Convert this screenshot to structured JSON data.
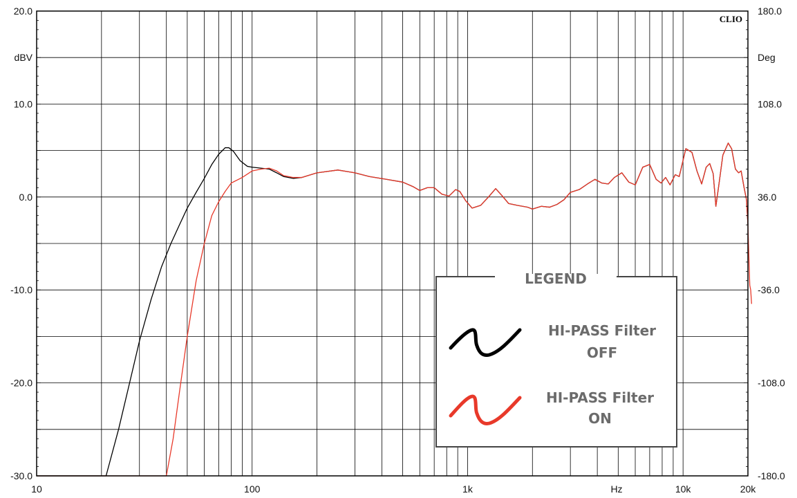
{
  "chart_data": {
    "type": "line",
    "brand": "CLIO",
    "x_scale": "log",
    "xlim": [
      10,
      20000
    ],
    "ylim": [
      -30,
      20
    ],
    "y2lim": [
      -180,
      180
    ],
    "grid": true,
    "left_unit": "dBV",
    "right_unit": "Deg",
    "x_unit": "Hz",
    "x_ticks": [
      {
        "value": 10,
        "label": "10"
      },
      {
        "value": 100,
        "label": "100"
      },
      {
        "value": 1000,
        "label": "1k"
      },
      {
        "value": 10000,
        "label": "10k"
      },
      {
        "value": 20000,
        "label": "20k"
      }
    ],
    "y_ticks": [
      {
        "value": 20,
        "label": "20.0"
      },
      {
        "value": 10,
        "label": "10.0"
      },
      {
        "value": 0,
        "label": "0.0"
      },
      {
        "value": -10,
        "label": "-10.0"
      },
      {
        "value": -20,
        "label": "-20.0"
      },
      {
        "value": -30,
        "label": "-30.0"
      }
    ],
    "y2_ticks": [
      {
        "value": 180,
        "label": "180.0"
      },
      {
        "value": 108,
        "label": "108.0"
      },
      {
        "value": 36,
        "label": "36.0"
      },
      {
        "value": -36,
        "label": "-36.0"
      },
      {
        "value": -108,
        "label": "-108.0"
      },
      {
        "value": -180,
        "label": "-180.0"
      }
    ],
    "legend": {
      "title": "LEGEND",
      "placement": "bottom-right",
      "entries": [
        {
          "line1": "HI-PASS Filter",
          "line2": "OFF",
          "color": "#000000"
        },
        {
          "line1": "HI-PASS Filter",
          "line2": "ON",
          "color": "#e8392a"
        }
      ]
    },
    "series": [
      {
        "color": "#000000",
        "points": [
          [
            10,
            -30
          ],
          [
            21,
            -30
          ],
          [
            24,
            -25
          ],
          [
            27,
            -20
          ],
          [
            30,
            -15.5
          ],
          [
            34,
            -11
          ],
          [
            38,
            -7.5
          ],
          [
            42,
            -5
          ],
          [
            46,
            -3
          ],
          [
            50,
            -1.2
          ],
          [
            55,
            0.5
          ],
          [
            60,
            2
          ],
          [
            65,
            3.5
          ],
          [
            70,
            4.6
          ],
          [
            75,
            5.3
          ],
          [
            78,
            5.3
          ],
          [
            82,
            4.9
          ],
          [
            88,
            3.9
          ],
          [
            95,
            3.3
          ],
          [
            100,
            3.2
          ],
          [
            110,
            3.1
          ],
          [
            120,
            3
          ],
          [
            130,
            2.6
          ],
          [
            140,
            2.2
          ],
          [
            155,
            2.0
          ],
          [
            170,
            2.1
          ],
          [
            200,
            2.6
          ],
          [
            250,
            2.9
          ],
          [
            300,
            2.6
          ],
          [
            350,
            2.2
          ],
          [
            420,
            1.9
          ],
          [
            500,
            1.6
          ],
          [
            560,
            1.1
          ],
          [
            600,
            0.7
          ],
          [
            650,
            1.0
          ],
          [
            700,
            1.0
          ],
          [
            760,
            0.3
          ],
          [
            820,
            0.1
          ],
          [
            880,
            0.8
          ],
          [
            920,
            0.6
          ],
          [
            980,
            -0.4
          ],
          [
            1050,
            -1.2
          ],
          [
            1150,
            -0.9
          ],
          [
            1250,
            0.0
          ],
          [
            1350,
            0.9
          ],
          [
            1450,
            0.1
          ],
          [
            1550,
            -0.7
          ],
          [
            1700,
            -0.9
          ],
          [
            1900,
            -1.1
          ],
          [
            2000,
            -1.3
          ],
          [
            2200,
            -1.0
          ],
          [
            2400,
            -1.1
          ],
          [
            2600,
            -0.8
          ],
          [
            2800,
            -0.3
          ],
          [
            3000,
            0.5
          ],
          [
            3300,
            0.8
          ],
          [
            3600,
            1.4
          ],
          [
            3900,
            1.9
          ],
          [
            4200,
            1.5
          ],
          [
            4500,
            1.4
          ],
          [
            4800,
            2.1
          ],
          [
            5200,
            2.6
          ],
          [
            5600,
            1.6
          ],
          [
            6000,
            1.3
          ],
          [
            6500,
            3.2
          ],
          [
            7000,
            3.5
          ],
          [
            7500,
            1.9
          ],
          [
            7900,
            1.5
          ],
          [
            8300,
            2.1
          ],
          [
            8700,
            1.3
          ],
          [
            9200,
            2.4
          ],
          [
            9600,
            2.2
          ],
          [
            10300,
            5.2
          ],
          [
            11000,
            4.8
          ],
          [
            11600,
            2.8
          ],
          [
            12200,
            1.4
          ],
          [
            12800,
            3.2
          ],
          [
            13300,
            3.6
          ],
          [
            13800,
            2.5
          ],
          [
            14200,
            -1.0
          ],
          [
            14700,
            1.5
          ],
          [
            15300,
            4.5
          ],
          [
            16200,
            5.8
          ],
          [
            16800,
            5.2
          ],
          [
            17500,
            3.0
          ],
          [
            18100,
            2.6
          ],
          [
            18600,
            2.8
          ],
          [
            19200,
            1.0
          ],
          [
            19700,
            -0.3
          ],
          [
            20000,
            -3.0
          ]
        ]
      },
      {
        "color": "#e8392a",
        "points": [
          [
            10,
            -30
          ],
          [
            40,
            -30
          ],
          [
            43,
            -26
          ],
          [
            46,
            -21
          ],
          [
            50,
            -15
          ],
          [
            55,
            -9
          ],
          [
            60,
            -5
          ],
          [
            65,
            -2
          ],
          [
            70,
            -0.5
          ],
          [
            75,
            0.6
          ],
          [
            80,
            1.5
          ],
          [
            90,
            2.1
          ],
          [
            100,
            2.8
          ],
          [
            110,
            3.0
          ],
          [
            120,
            3.1
          ],
          [
            130,
            2.8
          ],
          [
            140,
            2.3
          ],
          [
            155,
            2.1
          ],
          [
            170,
            2.1
          ],
          [
            200,
            2.6
          ],
          [
            250,
            2.9
          ],
          [
            300,
            2.6
          ],
          [
            350,
            2.2
          ],
          [
            420,
            1.9
          ],
          [
            500,
            1.6
          ],
          [
            560,
            1.1
          ],
          [
            600,
            0.7
          ],
          [
            650,
            1.0
          ],
          [
            700,
            1.0
          ],
          [
            760,
            0.3
          ],
          [
            820,
            0.1
          ],
          [
            880,
            0.8
          ],
          [
            920,
            0.6
          ],
          [
            980,
            -0.4
          ],
          [
            1050,
            -1.2
          ],
          [
            1150,
            -0.9
          ],
          [
            1250,
            0.0
          ],
          [
            1350,
            0.9
          ],
          [
            1450,
            0.1
          ],
          [
            1550,
            -0.7
          ],
          [
            1700,
            -0.9
          ],
          [
            1900,
            -1.1
          ],
          [
            2000,
            -1.3
          ],
          [
            2200,
            -1.0
          ],
          [
            2400,
            -1.1
          ],
          [
            2600,
            -0.8
          ],
          [
            2800,
            -0.3
          ],
          [
            3000,
            0.5
          ],
          [
            3300,
            0.8
          ],
          [
            3600,
            1.4
          ],
          [
            3900,
            1.9
          ],
          [
            4200,
            1.5
          ],
          [
            4500,
            1.4
          ],
          [
            4800,
            2.1
          ],
          [
            5200,
            2.6
          ],
          [
            5600,
            1.6
          ],
          [
            6000,
            1.3
          ],
          [
            6500,
            3.2
          ],
          [
            7000,
            3.5
          ],
          [
            7500,
            1.9
          ],
          [
            7900,
            1.5
          ],
          [
            8300,
            2.1
          ],
          [
            8700,
            1.3
          ],
          [
            9200,
            2.4
          ],
          [
            9600,
            2.2
          ],
          [
            10300,
            5.2
          ],
          [
            11000,
            4.8
          ],
          [
            11600,
            2.8
          ],
          [
            12200,
            1.4
          ],
          [
            12800,
            3.2
          ],
          [
            13300,
            3.6
          ],
          [
            13800,
            2.5
          ],
          [
            14200,
            -1.0
          ],
          [
            14700,
            1.5
          ],
          [
            15300,
            4.5
          ],
          [
            16200,
            5.8
          ],
          [
            16800,
            5.2
          ],
          [
            17500,
            3.0
          ],
          [
            18100,
            2.6
          ],
          [
            18600,
            2.8
          ],
          [
            19200,
            1.0
          ],
          [
            19700,
            -0.3
          ],
          [
            20000,
            -3.0
          ],
          [
            20400,
            -9.5
          ],
          [
            20600,
            -10.0
          ],
          [
            20800,
            -11.5
          ]
        ]
      }
    ]
  }
}
